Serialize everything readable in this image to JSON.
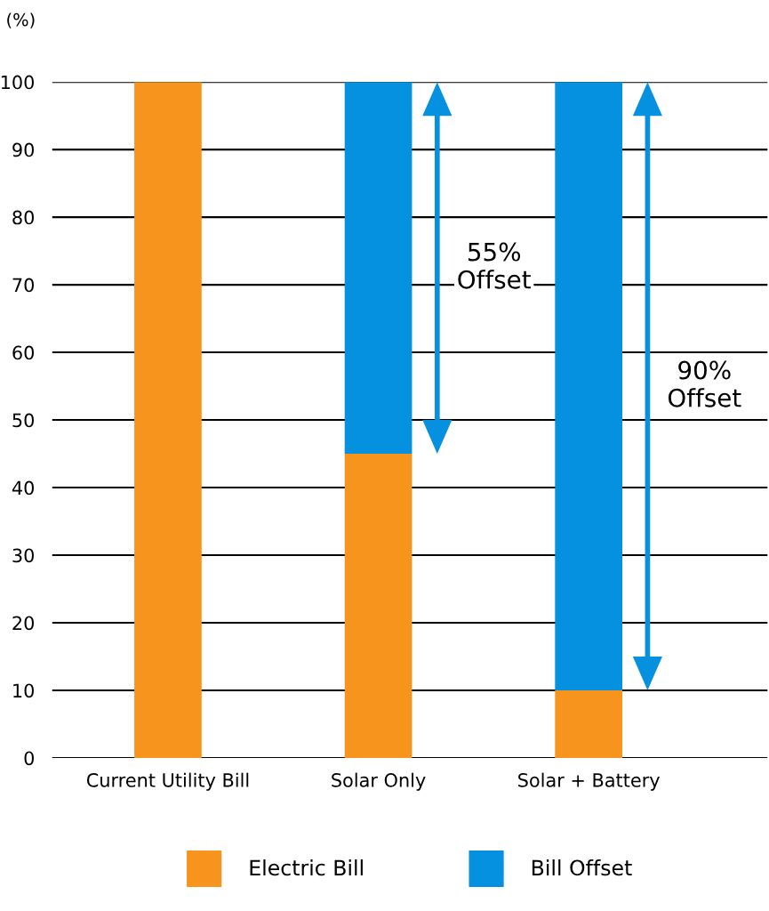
{
  "chart_data": {
    "type": "bar",
    "stacked": true,
    "ylabel": "(%)",
    "categories": [
      "Current Utility Bill",
      "Solar Only",
      "Solar + Battery"
    ],
    "series": [
      {
        "name": "Electric Bill",
        "color": "#f7941d",
        "values": [
          100,
          45,
          10
        ]
      },
      {
        "name": "Bill Offset",
        "color": "#0590e0",
        "values": [
          0,
          55,
          90
        ]
      }
    ],
    "ylim": [
      0,
      100
    ],
    "yticks": [
      0,
      10,
      20,
      30,
      40,
      50,
      60,
      70,
      80,
      90,
      100
    ],
    "grid": "y",
    "legend": "bottom",
    "annotations": [
      "55%\nOffset",
      "90%\nOffset"
    ]
  }
}
